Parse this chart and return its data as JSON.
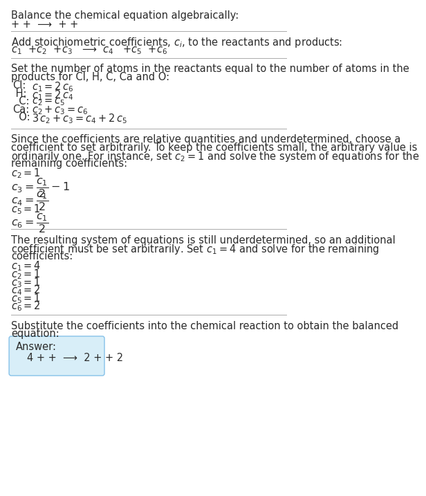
{
  "title": "Balance the chemical equation algebraically:",
  "line1": "+ +  ⟶  + +",
  "section2_title": "Add stoichiometric coefficients, $c_i$, to the reactants and products:",
  "line2": "$c_1$  +$c_2$  +$c_3$   ⟶  $c_4$   +$c_5$  +$c_6$",
  "section3_title_l1": "Set the number of atoms in the reactants equal to the number of atoms in the",
  "section3_title_l2": "products for Cl, H, C, Ca and O:",
  "equations_atoms": [
    [
      "Cl:",
      "$c_1 = 2\\,c_6$"
    ],
    [
      " H:",
      "$c_1 = 2\\,c_4$"
    ],
    [
      "  C:",
      "$c_2 = c_5$"
    ],
    [
      "Ca:",
      "$c_2 + c_3 = c_6$"
    ],
    [
      "  O:",
      "$3\\,c_2 + c_3 = c_4 + 2\\,c_5$"
    ]
  ],
  "section4_l1": "Since the coefficients are relative quantities and underdetermined, choose a",
  "section4_l2": "coefficient to set arbitrarily. To keep the coefficients small, the arbitrary value is",
  "section4_l3": "ordinarily one. For instance, set $c_2 = 1$ and solve the system of equations for the",
  "section4_l4": "remaining coefficients:",
  "equations_solve1_plain": [
    "$c_2 = 1$",
    "$c_5 = 1$"
  ],
  "eq_c2": "$c_2 = 1$",
  "eq_c3": "$c_3 = \\dfrac{c_1}{2} - 1$",
  "eq_c4": "$c_4 = \\dfrac{c_1}{2}$",
  "eq_c5": "$c_5 = 1$",
  "eq_c6": "$c_6 = \\dfrac{c_1}{2}$",
  "section5_l1": "The resulting system of equations is still underdetermined, so an additional",
  "section5_l2": "coefficient must be set arbitrarily. Set $c_1 = 4$ and solve for the remaining",
  "section5_l3": "coefficients:",
  "equations_solve2": [
    "$c_1 = 4$",
    "$c_2 = 1$",
    "$c_3 = 1$",
    "$c_4 = 2$",
    "$c_5 = 1$",
    "$c_6 = 2$"
  ],
  "section6_l1": "Substitute the coefficients into the chemical reaction to obtain the balanced",
  "section6_l2": "equation:",
  "answer_label": "Answer:",
  "answer_equation": "4 + +  ⟶  2 + + 2",
  "bg_color": "#ffffff",
  "text_color": "#2b2b2b",
  "answer_box_facecolor": "#d8eef8",
  "answer_box_edgecolor": "#85c1e9",
  "sep_color": "#aaaaaa",
  "fs_body": 10.5,
  "fs_eq": 10.5,
  "lh": 15,
  "lh_eq": 22
}
